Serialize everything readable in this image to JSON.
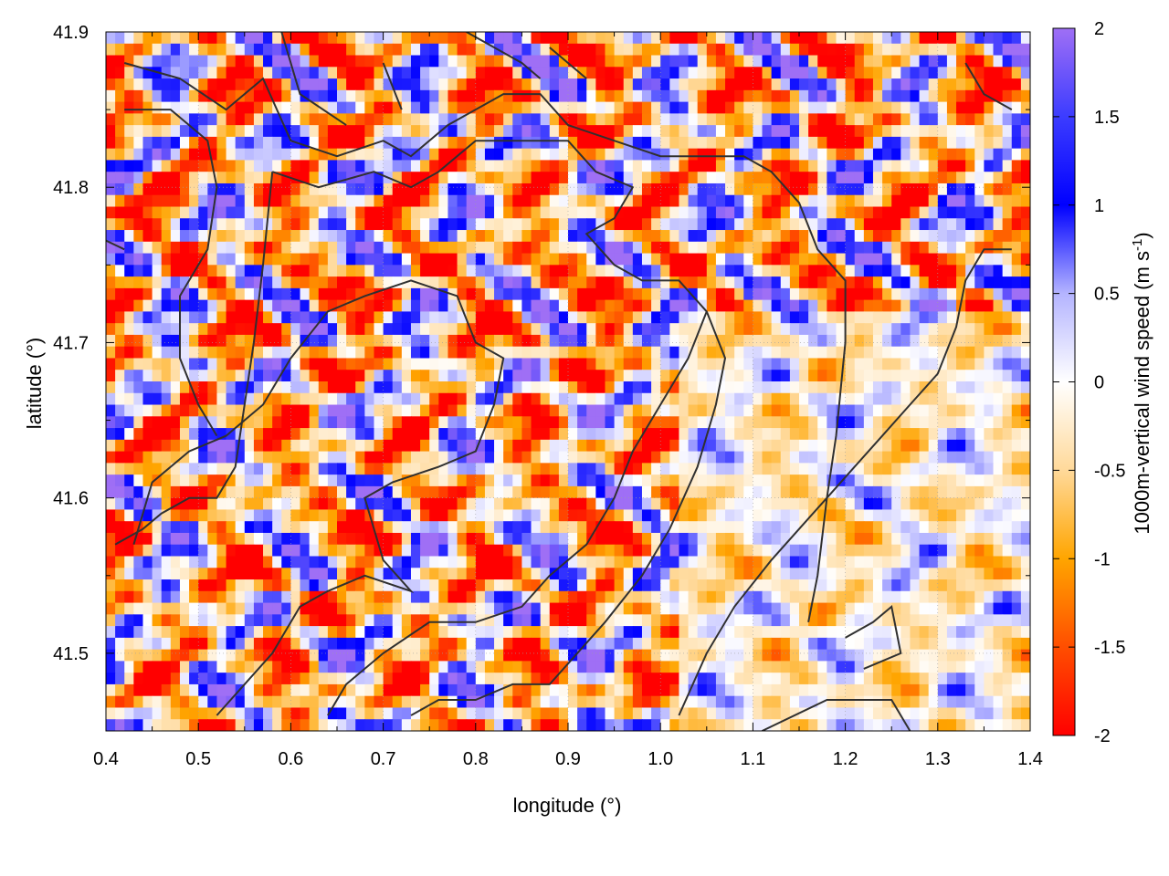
{
  "chart_data": {
    "type": "heatmap",
    "title": "",
    "xlabel": "longitude (°)",
    "ylabel": "latitude (°)",
    "xlim": [
      0.4,
      1.4
    ],
    "ylim": [
      41.45,
      41.9
    ],
    "x_ticks": [
      0.4,
      0.5,
      0.6,
      0.7,
      0.8,
      0.9,
      1.0,
      1.1,
      1.2,
      1.3,
      1.4
    ],
    "x_tick_labels": [
      "0.4",
      "0.5",
      "0.6",
      "0.7",
      "0.8",
      "0.9",
      "1.0",
      "1.1",
      "1.2",
      "1.3",
      "1.4"
    ],
    "y_ticks": [
      41.5,
      41.6,
      41.7,
      41.8,
      41.9
    ],
    "y_tick_labels": [
      "41.5",
      "41.6",
      "41.7",
      "41.8",
      "41.9"
    ],
    "grid": true,
    "colorbar": {
      "label_main": "1000m-vertical wind speed (m s",
      "label_sup": "-1",
      "label_end": ")",
      "range": [
        -2,
        2
      ],
      "ticks": [
        -2,
        -1.5,
        -1,
        -0.5,
        0,
        0.5,
        1,
        1.5,
        2
      ],
      "tick_labels": [
        "-2",
        "-1.5",
        "-1",
        "-0.5",
        "0",
        "0.5",
        "1",
        "1.5",
        "2"
      ],
      "colors": [
        {
          "value": -2.0,
          "color": "#ff0000"
        },
        {
          "value": -1.5,
          "color": "#ff4e00"
        },
        {
          "value": -1.0,
          "color": "#ffa500"
        },
        {
          "value": -0.5,
          "color": "#ffd99a"
        },
        {
          "value": 0.0,
          "color": "#ffffff"
        },
        {
          "value": 0.5,
          "color": "#b4b4ff"
        },
        {
          "value": 1.0,
          "color": "#0000ff"
        },
        {
          "value": 1.5,
          "color": "#3c3cff"
        },
        {
          "value": 2.0,
          "color": "#9f6ff5"
        }
      ]
    },
    "field_description_regions": [
      {
        "lon": [
          0.4,
          1.0
        ],
        "lat": [
          41.45,
          41.9
        ],
        "character": "strong alternating updrafts and downdrafts"
      },
      {
        "lon": [
          1.0,
          1.4
        ],
        "lat": [
          41.45,
          41.72
        ],
        "character": "weak mixed vertical motion"
      }
    ],
    "contours": [
      [
        [
          0.42,
          41.88
        ],
        [
          0.48,
          41.87
        ],
        [
          0.53,
          41.85
        ],
        [
          0.57,
          41.87
        ],
        [
          0.6,
          41.83
        ],
        [
          0.65,
          41.82
        ],
        [
          0.7,
          41.83
        ],
        [
          0.73,
          41.82
        ],
        [
          0.77,
          41.84
        ],
        [
          0.83,
          41.86
        ],
        [
          0.87,
          41.86
        ],
        [
          0.9,
          41.84
        ],
        [
          0.95,
          41.83
        ],
        [
          1.0,
          41.82
        ],
        [
          1.05,
          41.82
        ],
        [
          1.09,
          41.82
        ],
        [
          1.12,
          41.81
        ],
        [
          1.15,
          41.79
        ],
        [
          1.17,
          41.76
        ],
        [
          1.2,
          41.74
        ],
        [
          1.2,
          41.7
        ],
        [
          1.19,
          41.64
        ],
        [
          1.18,
          41.6
        ],
        [
          1.17,
          41.55
        ],
        [
          1.16,
          41.52
        ]
      ],
      [
        [
          0.42,
          41.85
        ],
        [
          0.47,
          41.85
        ],
        [
          0.51,
          41.83
        ],
        [
          0.52,
          41.8
        ],
        [
          0.51,
          41.76
        ],
        [
          0.48,
          41.73
        ],
        [
          0.48,
          41.69
        ],
        [
          0.5,
          41.66
        ],
        [
          0.52,
          41.64
        ]
      ],
      [
        [
          0.58,
          41.81
        ],
        [
          0.63,
          41.8
        ],
        [
          0.69,
          41.81
        ],
        [
          0.73,
          41.8
        ],
        [
          0.76,
          41.81
        ],
        [
          0.8,
          41.83
        ],
        [
          0.85,
          41.83
        ],
        [
          0.9,
          41.83
        ],
        [
          0.93,
          41.81
        ],
        [
          0.97,
          41.8
        ],
        [
          0.95,
          41.78
        ],
        [
          0.92,
          41.77
        ],
        [
          0.95,
          41.75
        ],
        [
          0.98,
          41.74
        ],
        [
          1.02,
          41.74
        ],
        [
          1.05,
          41.72
        ],
        [
          1.07,
          41.69
        ],
        [
          1.06,
          41.66
        ],
        [
          1.04,
          41.62
        ],
        [
          1.01,
          41.58
        ],
        [
          0.98,
          41.55
        ],
        [
          0.94,
          41.52
        ],
        [
          0.91,
          41.5
        ],
        [
          0.88,
          41.48
        ],
        [
          0.84,
          41.48
        ],
        [
          0.8,
          41.47
        ],
        [
          0.76,
          41.47
        ],
        [
          0.73,
          41.46
        ]
      ],
      [
        [
          0.58,
          41.81
        ],
        [
          0.57,
          41.75
        ],
        [
          0.56,
          41.7
        ],
        [
          0.55,
          41.66
        ],
        [
          0.54,
          41.62
        ],
        [
          0.52,
          41.6
        ],
        [
          0.49,
          41.6
        ],
        [
          0.46,
          41.59
        ],
        [
          0.44,
          41.58
        ],
        [
          0.41,
          41.57
        ]
      ],
      [
        [
          0.43,
          41.57
        ],
        [
          0.45,
          41.61
        ],
        [
          0.49,
          41.63
        ],
        [
          0.53,
          41.64
        ],
        [
          0.57,
          41.66
        ],
        [
          0.6,
          41.69
        ],
        [
          0.64,
          41.72
        ],
        [
          0.68,
          41.73
        ],
        [
          0.73,
          41.74
        ],
        [
          0.78,
          41.73
        ],
        [
          0.8,
          41.7
        ],
        [
          0.83,
          41.69
        ],
        [
          0.82,
          41.66
        ],
        [
          0.8,
          41.63
        ],
        [
          0.76,
          41.62
        ],
        [
          0.71,
          41.61
        ],
        [
          0.68,
          41.6
        ],
        [
          0.7,
          41.56
        ],
        [
          0.73,
          41.54
        ],
        [
          0.68,
          41.55
        ],
        [
          0.64,
          41.54
        ],
        [
          0.61,
          41.53
        ],
        [
          0.58,
          41.5
        ],
        [
          0.55,
          41.48
        ],
        [
          0.52,
          41.46
        ]
      ],
      [
        [
          0.64,
          41.46
        ],
        [
          0.66,
          41.48
        ],
        [
          0.7,
          41.5
        ],
        [
          0.75,
          41.52
        ],
        [
          0.8,
          41.52
        ],
        [
          0.85,
          41.53
        ],
        [
          0.88,
          41.55
        ],
        [
          0.92,
          41.57
        ],
        [
          0.95,
          41.6
        ],
        [
          0.97,
          41.63
        ],
        [
          1.0,
          41.66
        ],
        [
          1.03,
          41.69
        ],
        [
          1.05,
          41.72
        ]
      ],
      [
        [
          1.02,
          41.46
        ],
        [
          1.05,
          41.5
        ],
        [
          1.08,
          41.53
        ],
        [
          1.12,
          41.56
        ],
        [
          1.15,
          41.58
        ],
        [
          1.18,
          41.6
        ],
        [
          1.21,
          41.62
        ],
        [
          1.24,
          41.64
        ],
        [
          1.27,
          41.66
        ],
        [
          1.3,
          41.68
        ],
        [
          1.32,
          41.71
        ],
        [
          1.33,
          41.74
        ],
        [
          1.35,
          41.76
        ],
        [
          1.38,
          41.76
        ]
      ],
      [
        [
          1.2,
          41.51
        ],
        [
          1.23,
          41.52
        ],
        [
          1.25,
          41.53
        ],
        [
          1.26,
          41.5
        ],
        [
          1.22,
          41.49
        ]
      ],
      [
        [
          1.11,
          41.45
        ],
        [
          1.18,
          41.47
        ],
        [
          1.25,
          41.47
        ],
        [
          1.27,
          41.45
        ]
      ],
      [
        [
          0.35,
          41.78
        ],
        [
          0.42,
          41.76
        ]
      ],
      [
        [
          0.59,
          41.9
        ],
        [
          0.61,
          41.86
        ],
        [
          0.66,
          41.84
        ]
      ],
      [
        [
          0.7,
          41.88
        ],
        [
          0.72,
          41.85
        ]
      ],
      [
        [
          0.79,
          41.9
        ],
        [
          0.85,
          41.88
        ],
        [
          0.87,
          41.87
        ]
      ],
      [
        [
          0.88,
          41.89
        ],
        [
          0.92,
          41.87
        ]
      ],
      [
        [
          1.33,
          41.88
        ],
        [
          1.35,
          41.86
        ],
        [
          1.38,
          41.85
        ]
      ]
    ]
  }
}
